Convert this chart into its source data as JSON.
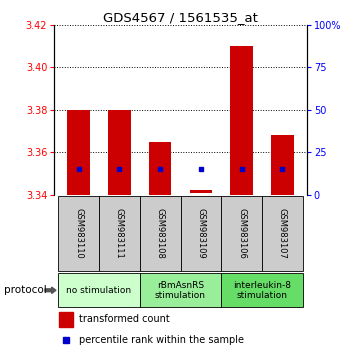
{
  "title": "GDS4567 / 1561535_at",
  "samples": [
    "GSM983110",
    "GSM983111",
    "GSM983108",
    "GSM983109",
    "GSM983106",
    "GSM983107"
  ],
  "bar_bottom": [
    3.34,
    3.34,
    3.34,
    3.341,
    3.34,
    3.34
  ],
  "bar_top": [
    3.38,
    3.38,
    3.365,
    3.342,
    3.41,
    3.368
  ],
  "blue_y": [
    3.352,
    3.352,
    3.352,
    3.352,
    3.352,
    3.352
  ],
  "ylim_left": [
    3.34,
    3.42
  ],
  "ylim_right": [
    0,
    100
  ],
  "yticks_left": [
    3.34,
    3.36,
    3.38,
    3.4,
    3.42
  ],
  "yticks_right": [
    0,
    25,
    50,
    75,
    100
  ],
  "ytick_labels_right": [
    "0",
    "25",
    "50",
    "75",
    "100%"
  ],
  "bar_color": "#cc0000",
  "blue_color": "#0000cc",
  "legend_red_label": "transformed count",
  "legend_blue_label": "percentile rank within the sample",
  "protocol_label": "protocol",
  "background_color": "#ffffff",
  "sample_box_color": "#cccccc",
  "group_no_stim_color": "#ccffcc",
  "group_rbm_color": "#99ee99",
  "group_il8_color": "#66dd66"
}
